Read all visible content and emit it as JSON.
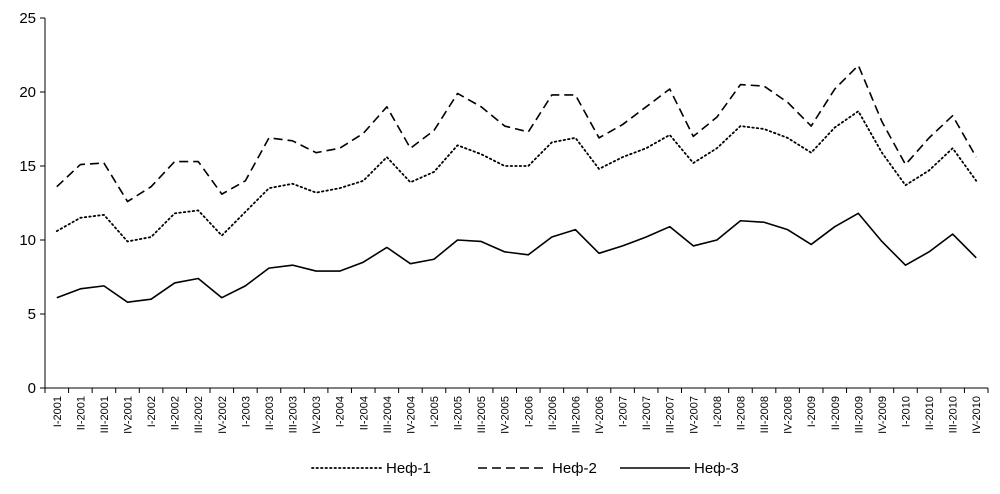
{
  "chart_data": {
    "type": "line",
    "title": "",
    "xlabel": "",
    "ylabel": "",
    "ylim": [
      0,
      25
    ],
    "yticks": [
      0,
      5,
      10,
      15,
      20,
      25
    ],
    "grid": false,
    "legend_position": "bottom",
    "categories": [
      "I-2001",
      "II-2001",
      "III-2001",
      "IV-2001",
      "I-2002",
      "II-2002",
      "III-2002",
      "IV-2002",
      "I-2003",
      "II-2003",
      "III-2003",
      "IV-2003",
      "I-2004",
      "II-2004",
      "III-2004",
      "IV-2004",
      "I-2005",
      "II-2005",
      "III-2005",
      "IV-2005",
      "I-2006",
      "II-2006",
      "III-2006",
      "IV-2006",
      "I-2007",
      "II-2007",
      "III-2007",
      "IV-2007",
      "I-2008",
      "II-2008",
      "III-2008",
      "IV-2008",
      "I-2009",
      "II-2009",
      "III-2009",
      "IV-2009",
      "I-2010",
      "II-2010",
      "III-2010",
      "IV-2010"
    ],
    "series": [
      {
        "name": "Неф-1",
        "style": "dotted",
        "color": "#000000",
        "values": [
          10.6,
          11.5,
          11.7,
          9.9,
          10.2,
          11.8,
          12.0,
          10.3,
          11.9,
          13.5,
          13.8,
          13.2,
          13.5,
          14.0,
          15.6,
          13.9,
          14.6,
          16.4,
          15.8,
          15.0,
          15.0,
          16.6,
          16.9,
          14.8,
          15.6,
          16.2,
          17.1,
          15.2,
          16.2,
          17.7,
          17.5,
          16.9,
          15.9,
          17.6,
          18.7,
          15.9,
          13.7,
          14.7,
          16.2,
          14.0
        ]
      },
      {
        "name": "Неф-2",
        "style": "dashed",
        "color": "#000000",
        "values": [
          13.6,
          15.1,
          15.2,
          12.6,
          13.6,
          15.3,
          15.3,
          13.1,
          14.0,
          16.9,
          16.7,
          15.9,
          16.2,
          17.2,
          19.0,
          16.2,
          17.4,
          19.9,
          19.0,
          17.7,
          17.3,
          19.8,
          19.8,
          16.9,
          17.8,
          19.0,
          20.2,
          17.0,
          18.3,
          20.5,
          20.4,
          19.3,
          17.7,
          20.2,
          21.8,
          18.0,
          15.1,
          16.9,
          18.4,
          15.6
        ]
      },
      {
        "name": "Неф-3",
        "style": "solid",
        "color": "#000000",
        "values": [
          6.1,
          6.7,
          6.9,
          5.8,
          6.0,
          7.1,
          7.4,
          6.1,
          6.9,
          8.1,
          8.3,
          7.9,
          7.9,
          8.5,
          9.5,
          8.4,
          8.7,
          10.0,
          9.9,
          9.2,
          9.0,
          10.2,
          10.7,
          9.1,
          9.6,
          10.2,
          10.9,
          9.6,
          10.0,
          11.3,
          11.2,
          10.7,
          9.7,
          10.9,
          11.8,
          9.9,
          8.3,
          9.2,
          10.4,
          8.8
        ]
      }
    ]
  }
}
